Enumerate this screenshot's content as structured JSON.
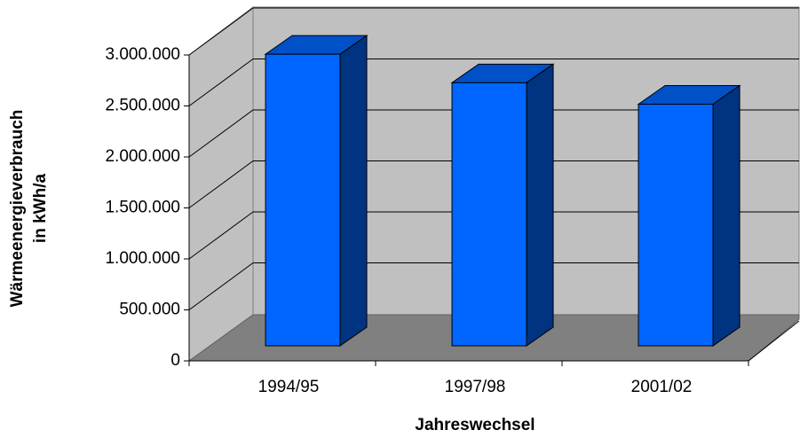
{
  "chart_data": {
    "type": "bar3d",
    "categories": [
      "1994/95",
      "1997/98",
      "2001/02"
    ],
    "values": [
      2860000,
      2580000,
      2370000
    ],
    "color": "#0066ff",
    "ylim": [
      0,
      3000000
    ],
    "yticks": [
      0,
      {
        "value": 500000,
        "label": "500.000"
      },
      {
        "value": 1000000,
        "label": "1.000.000"
      },
      {
        "value": 1500000,
        "label": "1.500.000"
      },
      {
        "value": 2000000,
        "label": "2.000.000"
      },
      {
        "value": 2500000,
        "label": "2.500.000"
      },
      {
        "value": 3000000,
        "label": "3.000.000"
      }
    ],
    "xlabel": "Jahreswechsel",
    "ylabel": [
      "Wärmeenergieverbrauch",
      "in kWh/a"
    ],
    "grid": true
  }
}
